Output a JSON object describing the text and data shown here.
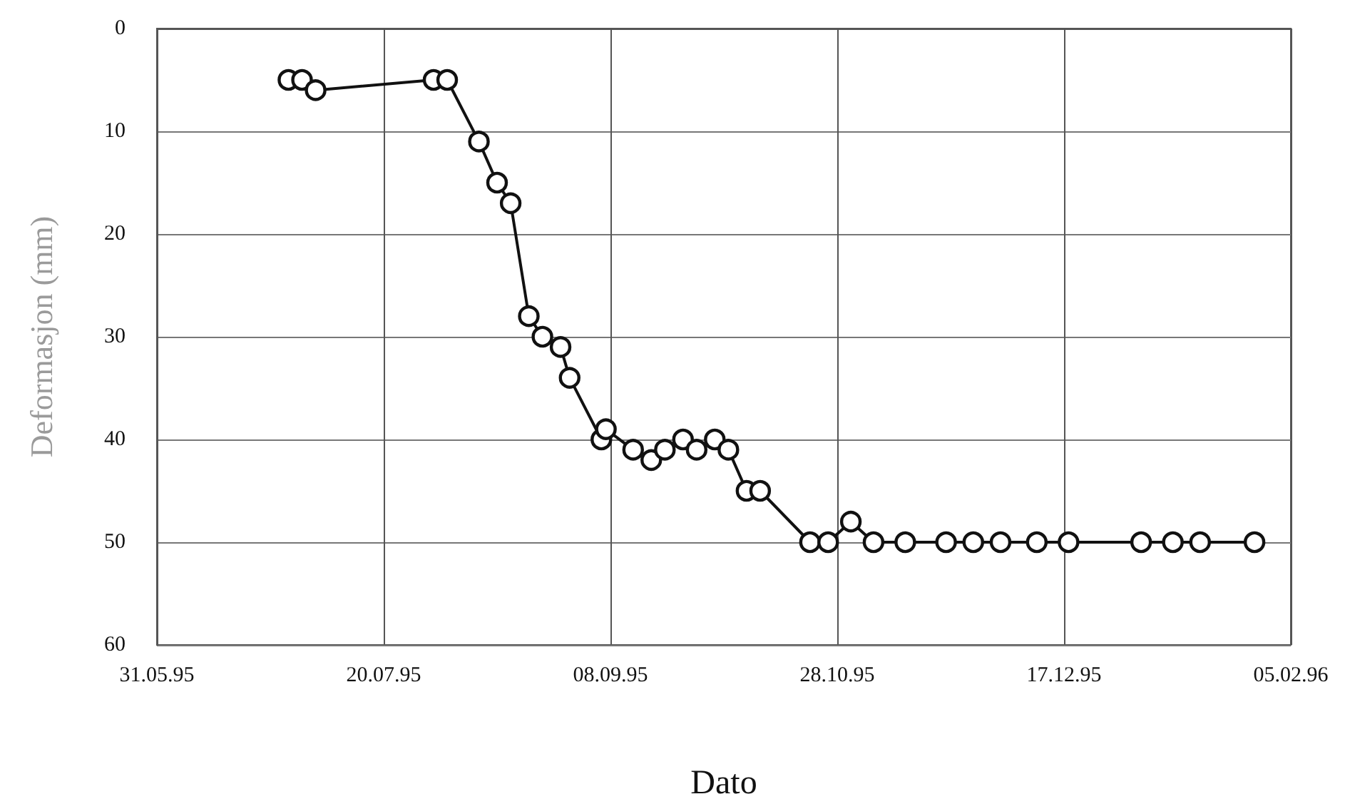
{
  "chart_data": {
    "type": "line",
    "xlabel": "Dato",
    "ylabel": "Deformasjon (mm)",
    "x": [
      "1995-06-29",
      "1995-07-02",
      "1995-07-05",
      "1995-07-31",
      "1995-08-03",
      "1995-08-10",
      "1995-08-14",
      "1995-08-17",
      "1995-08-21",
      "1995-08-24",
      "1995-08-28",
      "1995-08-30",
      "1995-09-06",
      "1995-09-07",
      "1995-09-13",
      "1995-09-17",
      "1995-09-20",
      "1995-09-24",
      "1995-09-27",
      "1995-10-01",
      "1995-10-04",
      "1995-10-08",
      "1995-10-11",
      "1995-10-22",
      "1995-10-26",
      "1995-10-31",
      "1995-11-05",
      "1995-11-12",
      "1995-11-21",
      "1995-11-27",
      "1995-12-03",
      "1995-12-11",
      "1995-12-18",
      "1996-01-03",
      "1996-01-10",
      "1996-01-16",
      "1996-01-28"
    ],
    "series": [
      {
        "color": "#111111",
        "values": [
          5,
          5,
          6,
          5,
          5,
          11,
          15,
          17,
          28,
          30,
          31,
          34,
          40,
          39,
          41,
          42,
          41,
          40,
          41,
          40,
          41,
          45,
          45,
          50,
          50,
          48,
          50,
          50,
          50,
          50,
          50,
          50,
          50,
          50,
          50,
          50,
          50
        ]
      }
    ],
    "xlim": [
      "1995-05-31",
      "1996-02-05"
    ],
    "xticks": [
      {
        "value": "1995-05-31",
        "label": "31.05.95"
      },
      {
        "value": "1995-07-20",
        "label": "20.07.95"
      },
      {
        "value": "1995-09-08",
        "label": "08.09.95"
      },
      {
        "value": "1995-10-28",
        "label": "28.10.95"
      },
      {
        "value": "1995-12-17",
        "label": "17.12.95"
      },
      {
        "value": "1996-02-05",
        "label": "05.02.96"
      }
    ],
    "ylim": [
      60,
      0
    ],
    "yticks": [
      0,
      10,
      20,
      30,
      40,
      50,
      60
    ],
    "grid": true,
    "marker": "circle",
    "line_style": "solid"
  }
}
